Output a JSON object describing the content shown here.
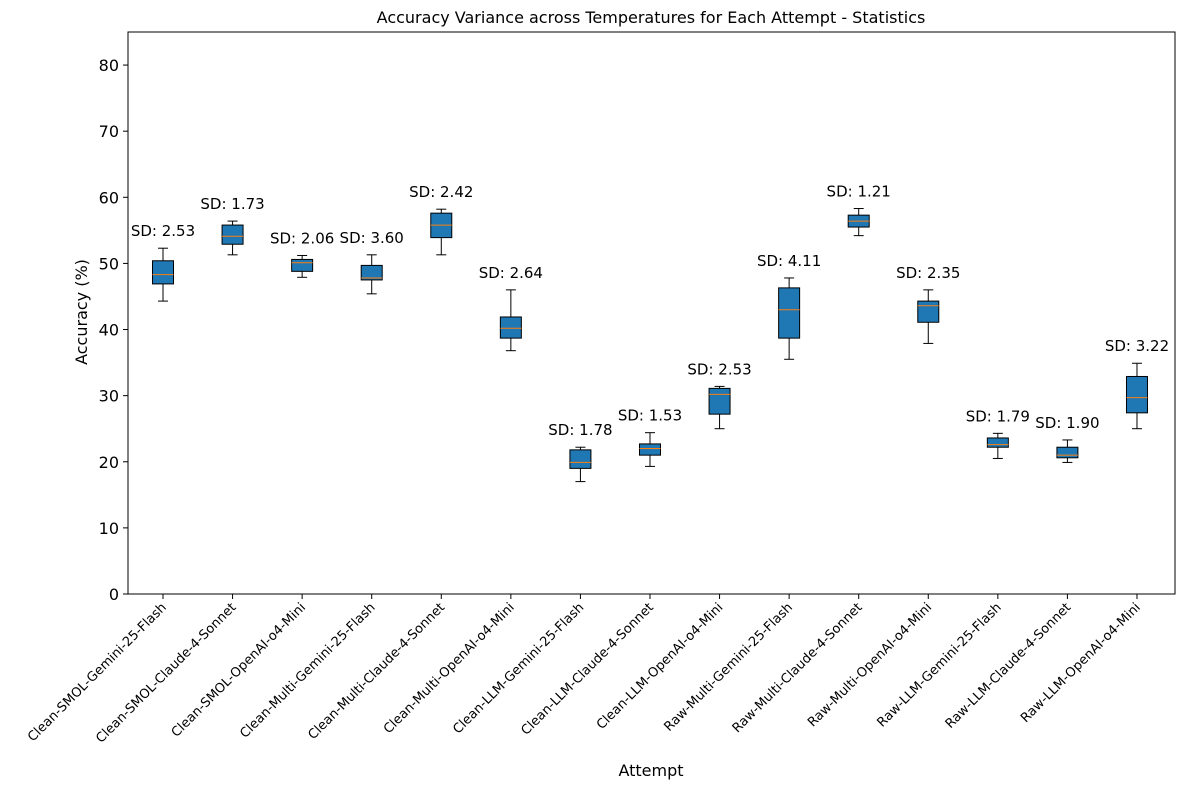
{
  "chart_data": {
    "type": "box",
    "title": "Accuracy Variance across Temperatures for Each Attempt - Statistics",
    "xlabel": "Attempt",
    "ylabel": "Accuracy (%)",
    "ylim": [
      0,
      85
    ],
    "yticks": [
      0,
      10,
      20,
      30,
      40,
      50,
      60,
      70,
      80
    ],
    "grid": false,
    "box_color": "#1f77b4",
    "median_color": "#ff7f0e",
    "categories": [
      "Clean-SMOL-Gemini-25-Flash",
      "Clean-SMOL-Claude-4-Sonnet",
      "Clean-SMOL-OpenAI-o4-Mini",
      "Clean-Multi-Gemini-25-Flash",
      "Clean-Multi-Claude-4-Sonnet",
      "Clean-Multi-OpenAI-o4-Mini",
      "Clean-LLM-Gemini-25-Flash",
      "Clean-LLM-Claude-4-Sonnet",
      "Clean-LLM-OpenAI-o4-Mini",
      "Raw-Multi-Gemini-25-Flash",
      "Raw-Multi-Claude-4-Sonnet",
      "Raw-Multi-OpenAI-o4-Mini",
      "Raw-LLM-Gemini-25-Flash",
      "Raw-LLM-Claude-4-Sonnet",
      "Raw-LLM-OpenAI-o4-Mini"
    ],
    "boxes": [
      {
        "min": 44.3,
        "q1": 46.9,
        "median": 48.3,
        "q3": 50.4,
        "max": 52.3,
        "sd_label": "SD: 2.53"
      },
      {
        "min": 51.3,
        "q1": 52.9,
        "median": 54.1,
        "q3": 55.8,
        "max": 56.4,
        "sd_label": "SD: 1.73"
      },
      {
        "min": 47.9,
        "q1": 48.8,
        "median": 50.1,
        "q3": 50.6,
        "max": 51.2,
        "sd_label": "SD: 2.06"
      },
      {
        "min": 45.4,
        "q1": 47.5,
        "median": 47.8,
        "q3": 49.7,
        "max": 51.3,
        "sd_label": "SD: 3.60"
      },
      {
        "min": 51.3,
        "q1": 53.9,
        "median": 55.8,
        "q3": 57.6,
        "max": 58.2,
        "sd_label": "SD: 2.42"
      },
      {
        "min": 36.8,
        "q1": 38.7,
        "median": 40.2,
        "q3": 41.9,
        "max": 46.0,
        "sd_label": "SD: 2.64"
      },
      {
        "min": 17.0,
        "q1": 19.0,
        "median": 19.9,
        "q3": 21.8,
        "max": 22.2,
        "sd_label": "SD: 1.78"
      },
      {
        "min": 19.3,
        "q1": 21.0,
        "median": 22.0,
        "q3": 22.7,
        "max": 24.4,
        "sd_label": "SD: 1.53"
      },
      {
        "min": 25.0,
        "q1": 27.2,
        "median": 30.2,
        "q3": 31.1,
        "max": 31.4,
        "sd_label": "SD: 2.53"
      },
      {
        "min": 35.5,
        "q1": 38.7,
        "median": 43.0,
        "q3": 46.3,
        "max": 47.8,
        "sd_label": "SD: 4.11"
      },
      {
        "min": 54.2,
        "q1": 55.5,
        "median": 56.4,
        "q3": 57.3,
        "max": 58.3,
        "sd_label": "SD: 1.21"
      },
      {
        "min": 37.9,
        "q1": 41.1,
        "median": 43.6,
        "q3": 44.3,
        "max": 46.0,
        "sd_label": "SD: 2.35"
      },
      {
        "min": 20.5,
        "q1": 22.2,
        "median": 22.6,
        "q3": 23.6,
        "max": 24.3,
        "sd_label": "SD: 1.79"
      },
      {
        "min": 19.9,
        "q1": 20.6,
        "median": 21.0,
        "q3": 22.2,
        "max": 23.3,
        "sd_label": "SD: 1.90"
      },
      {
        "min": 25.0,
        "q1": 27.4,
        "median": 29.7,
        "q3": 32.9,
        "max": 34.9,
        "sd_label": "SD: 3.22"
      }
    ]
  }
}
